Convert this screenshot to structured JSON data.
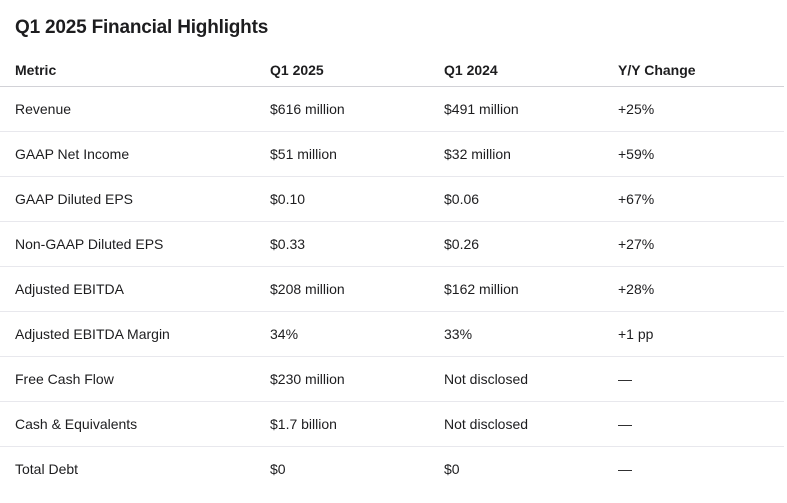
{
  "title": "Q1 2025 Financial Highlights",
  "table": {
    "headers": [
      "Metric",
      "Q1 2025",
      "Q1 2024",
      "Y/Y Change"
    ],
    "rows": [
      [
        "Revenue",
        "$616 million",
        "$491 million",
        "+25%"
      ],
      [
        "GAAP Net Income",
        "$51 million",
        "$32 million",
        "+59%"
      ],
      [
        "GAAP Diluted EPS",
        "$0.10",
        "$0.06",
        "+67%"
      ],
      [
        "Non-GAAP Diluted EPS",
        "$0.33",
        "$0.26",
        "+27%"
      ],
      [
        "Adjusted EBITDA",
        "$208 million",
        "$162 million",
        "+28%"
      ],
      [
        "Adjusted EBITDA Margin",
        "34%",
        "33%",
        "+1 pp"
      ],
      [
        "Free Cash Flow",
        "$230 million",
        "Not disclosed",
        "—"
      ],
      [
        "Cash & Equivalents",
        "$1.7 billion",
        "Not disclosed",
        "—"
      ],
      [
        "Total Debt",
        "$0",
        "$0",
        "—"
      ]
    ]
  }
}
